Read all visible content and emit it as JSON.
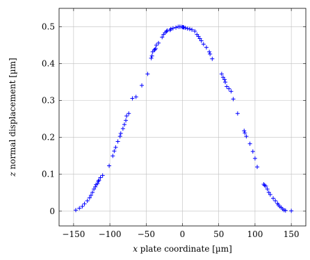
{
  "chart_data": {
    "type": "scatter",
    "xlabel_var": "x",
    "xlabel_rest": " plate coordinate [µm]",
    "ylabel_var": "z",
    "ylabel_rest": " normal displacement [µm]",
    "xlim": [
      -170,
      170
    ],
    "ylim": [
      -0.04,
      0.55
    ],
    "xticks": [
      -150,
      -100,
      -50,
      0,
      50,
      100,
      150
    ],
    "xtick_labels": [
      "−150",
      "−100",
      "−50",
      "0",
      "50",
      "100",
      "150"
    ],
    "yticks": [
      0,
      0.1,
      0.2,
      0.3,
      0.4,
      0.5
    ],
    "ytick_labels": [
      "0",
      "0.1",
      "0.2",
      "0.3",
      "0.4",
      "0.5"
    ],
    "grid": true,
    "marker": "+",
    "color": "#0000ff",
    "series": [
      {
        "x": [
          -147,
          -142,
          -138,
          -135,
          -131,
          -128,
          -126,
          -124,
          -122,
          -120,
          -119,
          -117,
          -116,
          -115,
          -113,
          -110,
          -101,
          -96,
          -94,
          -92,
          -89,
          -86,
          -85,
          -82,
          -80,
          -78,
          -77,
          -74,
          -69,
          -64,
          -56,
          -48,
          -43,
          -42,
          -41,
          -39,
          -38,
          -37,
          -36,
          -33,
          -28,
          -26,
          -24,
          -22,
          -21,
          -17,
          -16,
          -13,
          -9,
          -6,
          -4,
          -2,
          0,
          1,
          2,
          4,
          7,
          10,
          13,
          17,
          20,
          22,
          24,
          26,
          29,
          33,
          37,
          38,
          41,
          54,
          56,
          58,
          59,
          61,
          64,
          67,
          70,
          76,
          85,
          86,
          88,
          93,
          97,
          100,
          103,
          112,
          113,
          115,
          117,
          119,
          121,
          125,
          128,
          131,
          132,
          134,
          136,
          138,
          140,
          142,
          150
        ],
        "y": [
          0.003,
          0.008,
          0.013,
          0.02,
          0.028,
          0.036,
          0.043,
          0.051,
          0.06,
          0.066,
          0.072,
          0.075,
          0.081,
          0.084,
          0.091,
          0.097,
          0.123,
          0.15,
          0.163,
          0.173,
          0.189,
          0.203,
          0.211,
          0.224,
          0.235,
          0.246,
          0.258,
          0.265,
          0.306,
          0.31,
          0.341,
          0.372,
          0.415,
          0.421,
          0.432,
          0.437,
          0.438,
          0.441,
          0.45,
          0.456,
          0.472,
          0.479,
          0.484,
          0.487,
          0.49,
          0.491,
          0.494,
          0.496,
          0.498,
          0.5,
          0.5,
          0.5,
          0.499,
          0.499,
          0.498,
          0.497,
          0.495,
          0.494,
          0.492,
          0.488,
          0.479,
          0.474,
          0.468,
          0.462,
          0.453,
          0.444,
          0.432,
          0.426,
          0.413,
          0.372,
          0.363,
          0.357,
          0.35,
          0.338,
          0.332,
          0.325,
          0.304,
          0.265,
          0.218,
          0.212,
          0.203,
          0.183,
          0.162,
          0.143,
          0.12,
          0.073,
          0.07,
          0.068,
          0.06,
          0.051,
          0.045,
          0.035,
          0.028,
          0.021,
          0.017,
          0.013,
          0.01,
          0.006,
          0.003,
          0.002,
          0.001
        ]
      }
    ]
  }
}
